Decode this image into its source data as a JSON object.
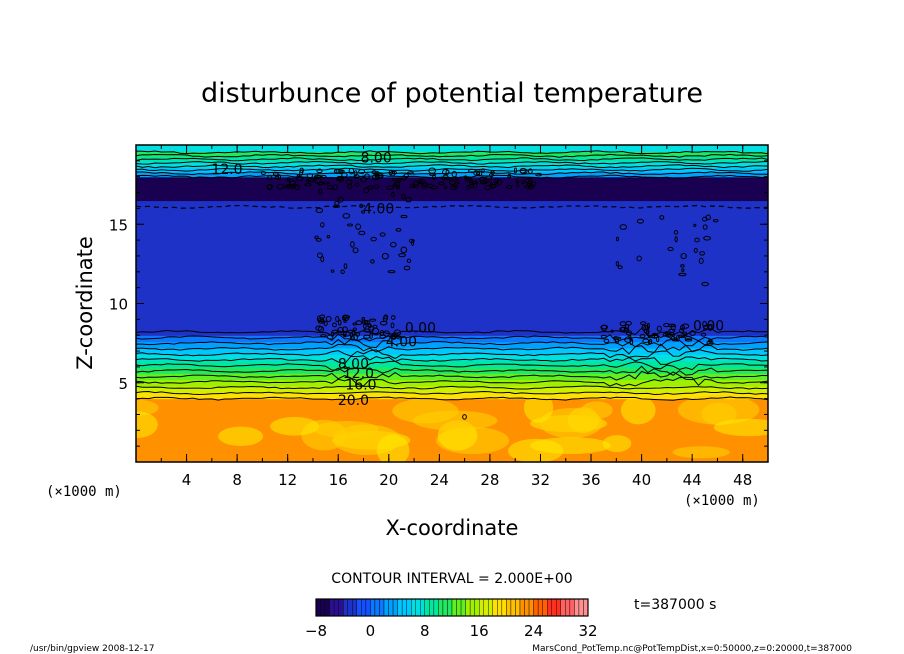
{
  "chart_data": {
    "type": "heatmap",
    "title": "disturbunce of potential temperature",
    "xlabel": "X-coordinate",
    "ylabel": "Z-coordinate",
    "x_unit": "(×1000 m)",
    "z_unit": "(×1000 m)",
    "xlim": [
      0,
      50
    ],
    "ylim": [
      0,
      20
    ],
    "x_ticks": [
      4,
      8,
      12,
      16,
      20,
      24,
      28,
      32,
      36,
      40,
      44,
      48
    ],
    "y_ticks": [
      5,
      10,
      15
    ],
    "contour_interval_label": "CONTOUR INTERVAL = 2.000E+00",
    "time_label": "t=387000 s",
    "colorbar": {
      "min": -8,
      "max": 32,
      "ticks": [
        -8,
        0,
        8,
        16,
        24,
        32
      ],
      "colors": [
        "#1a0050",
        "#2a1090",
        "#1e32c8",
        "#1450ff",
        "#0a78ff",
        "#00a0ff",
        "#00c8ff",
        "#00e0e0",
        "#00e8a0",
        "#20e860",
        "#60f020",
        "#a0f000",
        "#d0f000",
        "#ffe000",
        "#ffc000",
        "#ff9000",
        "#ff6000",
        "#ff3020",
        "#ff6060",
        "#ff9090"
      ]
    },
    "contour_labels": [
      {
        "text": "8.00",
        "x": 19.0,
        "z": 19.2
      },
      {
        "text": "12.0",
        "x": 7.2,
        "z": 18.5
      },
      {
        "text": "4.00",
        "x": 19.2,
        "z": 16.0
      },
      {
        "text": "0.00",
        "x": 22.5,
        "z": 8.5
      },
      {
        "text": "4.00",
        "x": 21.0,
        "z": 7.6
      },
      {
        "text": "0.00",
        "x": 45.3,
        "z": 8.6
      },
      {
        "text": "8.00",
        "x": 17.2,
        "z": 6.2
      },
      {
        "text": "12.0",
        "x": 17.6,
        "z": 5.6
      },
      {
        "text": "16.0",
        "x": 17.8,
        "z": 4.9
      },
      {
        "text": "20.0",
        "x": 17.2,
        "z": 3.9
      }
    ]
  },
  "footer": {
    "left": "/usr/bin/gpview   2008-12-17",
    "right": "MarsCond_PotTemp.nc@PotTempDist,x=0:50000,z=0:20000,t=387000"
  }
}
